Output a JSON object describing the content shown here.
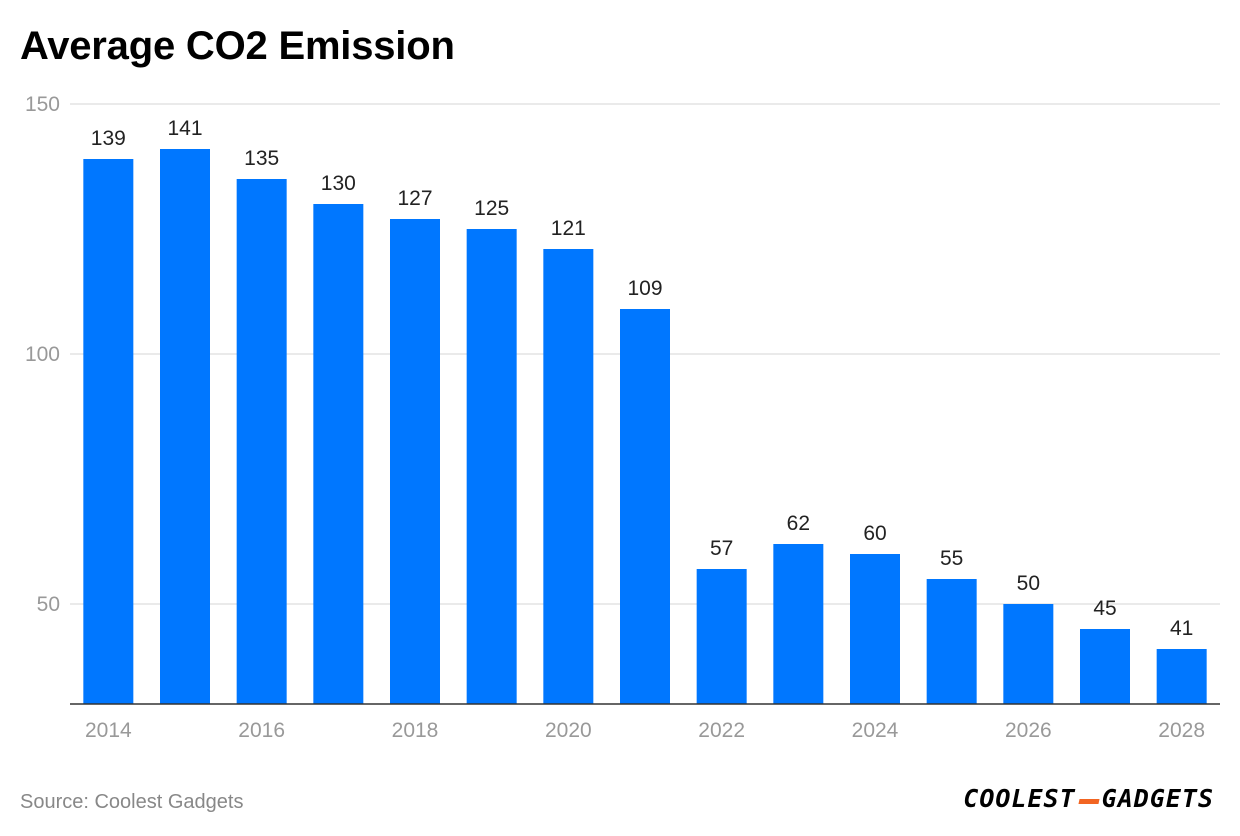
{
  "page": {
    "title": "Average CO2 Emission",
    "source": "Source: Coolest Gadgets",
    "brand": {
      "left": "COOLEST",
      "right": "GADGETS",
      "accent_color": "#f26522"
    }
  },
  "colors": {
    "bar": "#0077ff",
    "grid": "#dddddd",
    "axis": "#333333",
    "tick_text": "#999999",
    "label_text": "#222222"
  },
  "chart_data": {
    "type": "bar",
    "title": "Average CO2 Emission",
    "xlabel": "",
    "ylabel": "",
    "categories": [
      "2014",
      "2015",
      "2016",
      "2017",
      "2018",
      "2019",
      "2020",
      "2021",
      "2022",
      "2023",
      "2024",
      "2025",
      "2026",
      "2027",
      "2028"
    ],
    "values": [
      139,
      141,
      135,
      130,
      127,
      125,
      121,
      109,
      57,
      62,
      60,
      55,
      50,
      45,
      41
    ],
    "x_tick_labels": [
      "2014",
      "",
      "2016",
      "",
      "2018",
      "",
      "2020",
      "",
      "2022",
      "",
      "2024",
      "",
      "2026",
      "",
      "2028"
    ],
    "y_ticks": [
      50,
      100,
      150
    ],
    "ylim": [
      30,
      150
    ],
    "grid": true,
    "legend": "none",
    "data_labels": true
  }
}
